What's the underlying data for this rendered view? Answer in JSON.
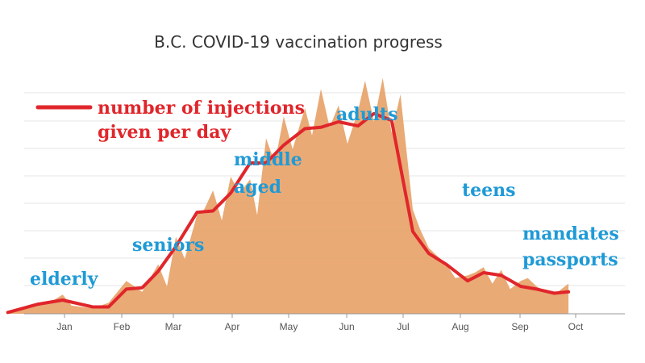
{
  "chart_data": {
    "type": "area",
    "title": "B.C. COVID-19 vaccination progress",
    "xlabel": "",
    "ylabel": "",
    "grid": true,
    "x_ticks": [
      "Jan",
      "Feb",
      "Mar",
      "Apr",
      "May",
      "Jun",
      "Jul",
      "Aug",
      "Sep",
      "Oct"
    ],
    "legend": {
      "label": "number of injections given per day",
      "position": "top-left"
    },
    "series": [
      {
        "name": "number of injections given per day",
        "role": "rolling average line",
        "color": "#e0262b",
        "x": [
          "2020-12-15",
          "2021-01-01",
          "2021-01-15",
          "2021-02-01",
          "2021-02-10",
          "2021-02-20",
          "2021-03-01",
          "2021-03-10",
          "2021-03-20",
          "2021-04-01",
          "2021-04-10",
          "2021-04-20",
          "2021-05-01",
          "2021-05-10",
          "2021-05-20",
          "2021-06-01",
          "2021-06-10",
          "2021-06-20",
          "2021-07-01",
          "2021-07-10",
          "2021-07-20",
          "2021-08-01",
          "2021-08-10",
          "2021-08-20",
          "2021-09-01",
          "2021-09-10",
          "2021-09-20",
          "2021-10-01",
          "2021-10-10",
          "2021-10-20",
          "2021-10-28"
        ],
        "values": [
          0.5,
          3.5,
          5,
          2.5,
          2.5,
          9,
          9.5,
          15.5,
          24.5,
          37,
          37.5,
          44,
          55,
          55,
          61.5,
          67.5,
          68,
          70,
          68.5,
          73,
          70.5,
          30,
          22,
          18,
          12,
          15,
          14,
          10,
          9,
          7.5,
          8
        ]
      },
      {
        "name": "",
        "role": "daily injections area",
        "color": "#e8a56e",
        "x": [
          "2020-12-15",
          "2021-01-01",
          "2021-01-10",
          "2021-01-15",
          "2021-01-20",
          "2021-02-01",
          "2021-02-10",
          "2021-02-20",
          "2021-03-01",
          "2021-03-10",
          "2021-03-15",
          "2021-03-20",
          "2021-03-25",
          "2021-04-01",
          "2021-04-05",
          "2021-04-10",
          "2021-04-15",
          "2021-04-20",
          "2021-04-25",
          "2021-05-01",
          "2021-05-05",
          "2021-05-10",
          "2021-05-15",
          "2021-05-20",
          "2021-05-25",
          "2021-06-01",
          "2021-06-05",
          "2021-06-10",
          "2021-06-15",
          "2021-06-20",
          "2021-06-25",
          "2021-07-01",
          "2021-07-05",
          "2021-07-10",
          "2021-07-15",
          "2021-07-20",
          "2021-07-25",
          "2021-08-01",
          "2021-08-05",
          "2021-08-10",
          "2021-08-15",
          "2021-08-20",
          "2021-08-25",
          "2021-09-01",
          "2021-09-05",
          "2021-09-10",
          "2021-09-15",
          "2021-09-20",
          "2021-09-25",
          "2021-10-01",
          "2021-10-05",
          "2021-10-10",
          "2021-10-15",
          "2021-10-20",
          "2021-10-28"
        ],
        "values": [
          0.3,
          4,
          5,
          7,
          3,
          2,
          4,
          12,
          8,
          18,
          10,
          28,
          20,
          36,
          38,
          45,
          34,
          50,
          44,
          49,
          36,
          64,
          55,
          72,
          60,
          75,
          65,
          82,
          68,
          76,
          62,
          74,
          85,
          70,
          86,
          66,
          80,
          38,
          31,
          24,
          21,
          18,
          13,
          14,
          15,
          17,
          11,
          16,
          9,
          12,
          13,
          10,
          8,
          7,
          11
        ]
      }
    ],
    "annotations": [
      {
        "text": "elderly",
        "color": "#1f9ad6"
      },
      {
        "text": "seniors",
        "color": "#1f9ad6"
      },
      {
        "text": "middle",
        "color": "#1f9ad6"
      },
      {
        "text": "aged",
        "color": "#1f9ad6"
      },
      {
        "text": "adults",
        "color": "#1f9ad6"
      },
      {
        "text": "teens",
        "color": "#1f9ad6"
      },
      {
        "text": "mandates",
        "color": "#1f9ad6"
      },
      {
        "text": "passports",
        "color": "#1f9ad6"
      },
      {
        "text": "number of injections",
        "color": "#e0262b"
      },
      {
        "text": "given per day",
        "color": "#e0262b"
      }
    ]
  }
}
